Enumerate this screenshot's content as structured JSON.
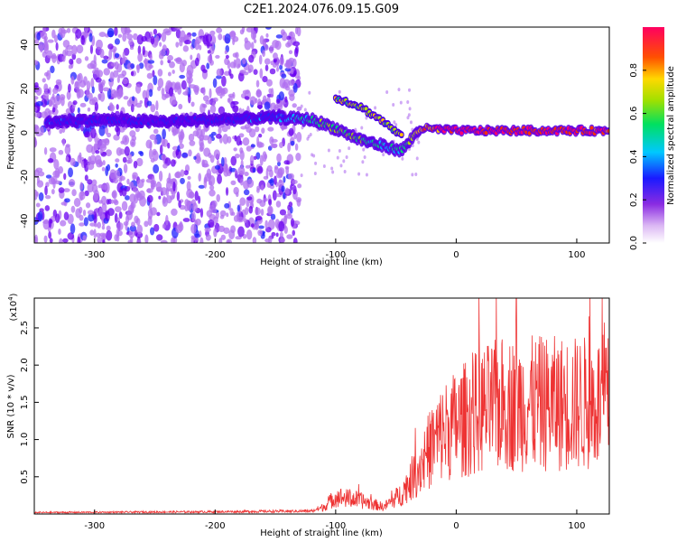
{
  "figure_title": "C2E1.2024.076.09.15.G09",
  "chart_data": [
    {
      "type": "heatmap",
      "title": "",
      "xlabel": "Height of straight line (km)",
      "ylabel": "Frequency (Hz)",
      "xlim": [
        -350,
        127
      ],
      "ylim": [
        -50,
        48
      ],
      "xticks": [
        -300,
        -200,
        -100,
        0,
        100
      ],
      "yticks": [
        -40,
        -20,
        0,
        20,
        40
      ],
      "colorbar": {
        "label": "Normalized spectral amplitude",
        "range": [
          0.0,
          1.0
        ],
        "ticks": [
          "0.0",
          "0.2",
          "0.4",
          "0.6",
          "0.8"
        ],
        "colormap": "rainbow (white-violet-blue-cyan-green-yellow-red-magenta)"
      },
      "description_of_content": {
        "noise_region_x": [
          -350,
          -130
        ],
        "main_trace": [
          {
            "x": -340,
            "f": 5,
            "amp": 0.35
          },
          {
            "x": -300,
            "f": 6,
            "amp": 0.3
          },
          {
            "x": -250,
            "f": 5,
            "amp": 0.3
          },
          {
            "x": -200,
            "f": 6,
            "amp": 0.3
          },
          {
            "x": -150,
            "f": 7,
            "amp": 0.35
          },
          {
            "x": -120,
            "f": 6,
            "amp": 0.55
          },
          {
            "x": -100,
            "f": 2,
            "amp": 0.6
          },
          {
            "x": -80,
            "f": -3,
            "amp": 0.55
          },
          {
            "x": -60,
            "f": -6,
            "amp": 0.5
          },
          {
            "x": -45,
            "f": -8,
            "amp": 0.45
          },
          {
            "x": -30,
            "f": 2,
            "amp": 0.8
          },
          {
            "x": 0,
            "f": 1,
            "amp": 0.95
          },
          {
            "x": 50,
            "f": 1,
            "amp": 0.9
          },
          {
            "x": 100,
            "f": 1,
            "amp": 0.9
          },
          {
            "x": 127,
            "f": 1,
            "amp": 0.85
          }
        ],
        "upper_trace": [
          {
            "x": -100,
            "f": 16
          },
          {
            "x": -80,
            "f": 12
          },
          {
            "x": -60,
            "f": 5
          },
          {
            "x": -45,
            "f": -2
          }
        ]
      }
    },
    {
      "type": "line",
      "title": "",
      "xlabel": "Height of straight line (km)",
      "ylabel": "SNR (10 * v/v)",
      "y_scale_label": "(x10",
      "y_scale_exp": "4",
      "y_scale_close": ")",
      "xlim": [
        -350,
        127
      ],
      "ylim": [
        0,
        2.9
      ],
      "xticks": [
        -300,
        -200,
        -100,
        0,
        100
      ],
      "yticks": [
        "0.5",
        "1.0",
        "1.5",
        "2.0",
        "2.5"
      ],
      "series": [
        {
          "color": "#ee3333",
          "envelope": [
            {
              "x": -350,
              "y": 0.02
            },
            {
              "x": -200,
              "y": 0.03
            },
            {
              "x": -120,
              "y": 0.04
            },
            {
              "x": -110,
              "y": 0.1
            },
            {
              "x": -100,
              "y": 0.25
            },
            {
              "x": -80,
              "y": 0.2
            },
            {
              "x": -60,
              "y": 0.1
            },
            {
              "x": -45,
              "y": 0.3
            },
            {
              "x": -30,
              "y": 0.7
            },
            {
              "x": -20,
              "y": 1.0
            },
            {
              "x": -10,
              "y": 1.2
            },
            {
              "x": 0,
              "y": 1.3
            },
            {
              "x": 20,
              "y": 1.5
            },
            {
              "x": 40,
              "y": 1.6
            },
            {
              "x": 60,
              "y": 1.6
            },
            {
              "x": 80,
              "y": 1.6
            },
            {
              "x": 100,
              "y": 1.6
            },
            {
              "x": 127,
              "y": 1.62
            }
          ],
          "peak": {
            "x": 50,
            "y": 2.9
          }
        }
      ]
    }
  ]
}
